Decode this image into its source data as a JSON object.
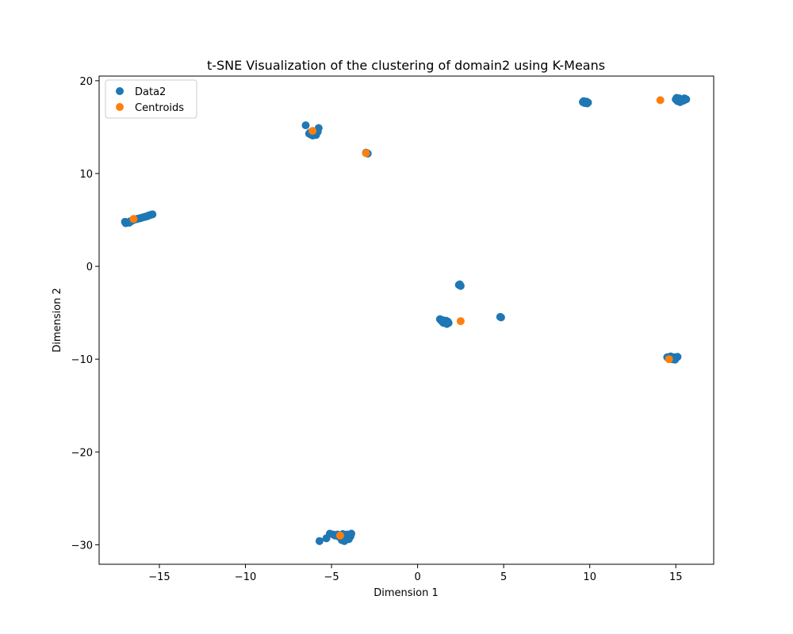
{
  "chart_data": {
    "type": "scatter",
    "title": "t-SNE Visualization of the clustering of domain2 using K-Means",
    "xlabel": "Dimension 1",
    "ylabel": "Dimension 2",
    "xlim": [
      -18.5,
      17.2
    ],
    "ylim": [
      -32.1,
      20.5
    ],
    "xticks": [
      -15,
      -10,
      -5,
      0,
      5,
      10,
      15
    ],
    "yticks": [
      20,
      10,
      0,
      -10,
      -20,
      -30
    ],
    "xtick_labels": [
      "−15",
      "−10",
      "−5",
      "0",
      "5",
      "10",
      "15"
    ],
    "ytick_labels": [
      "20",
      "10",
      "0",
      "−10",
      "−20",
      "−30"
    ],
    "grid": false,
    "legend_position": "upper-left",
    "series": [
      {
        "name": "Data2",
        "color": "#1f77b4",
        "points": [
          [
            -17.0,
            4.8
          ],
          [
            -16.9,
            4.7
          ],
          [
            -16.8,
            4.75
          ],
          [
            -16.7,
            4.85
          ],
          [
            -16.6,
            4.9
          ],
          [
            -16.5,
            5.0
          ],
          [
            -16.4,
            5.05
          ],
          [
            -16.3,
            5.1
          ],
          [
            -16.2,
            5.15
          ],
          [
            -16.1,
            5.2
          ],
          [
            -16.0,
            5.25
          ],
          [
            -15.9,
            5.3
          ],
          [
            -15.8,
            5.35
          ],
          [
            -15.7,
            5.4
          ],
          [
            -15.6,
            5.5
          ],
          [
            -15.5,
            5.55
          ],
          [
            -15.4,
            5.6
          ],
          [
            -16.95,
            4.65
          ],
          [
            -16.75,
            4.7
          ],
          [
            -6.5,
            15.2
          ],
          [
            -6.3,
            14.3
          ],
          [
            -6.2,
            14.2
          ],
          [
            -6.1,
            14.1
          ],
          [
            -6.0,
            14.2
          ],
          [
            -5.9,
            14.15
          ],
          [
            -5.8,
            14.5
          ],
          [
            -5.75,
            14.9
          ],
          [
            -6.25,
            14.4
          ],
          [
            -6.05,
            14.35
          ],
          [
            -2.95,
            12.2
          ],
          [
            -3.0,
            12.25
          ],
          [
            -2.9,
            12.15
          ],
          [
            -5.7,
            -29.6
          ],
          [
            -5.3,
            -29.3
          ],
          [
            -5.1,
            -28.8
          ],
          [
            -4.9,
            -28.9
          ],
          [
            -4.8,
            -29.0
          ],
          [
            -4.6,
            -29.1
          ],
          [
            -4.5,
            -29.2
          ],
          [
            -4.4,
            -29.5
          ],
          [
            -4.3,
            -29.3
          ],
          [
            -4.2,
            -29.0
          ],
          [
            -4.1,
            -28.9
          ],
          [
            -4.0,
            -29.4
          ],
          [
            -3.9,
            -29.1
          ],
          [
            -3.85,
            -28.8
          ],
          [
            -4.35,
            -28.85
          ],
          [
            -4.65,
            -28.9
          ],
          [
            -4.25,
            -29.6
          ],
          [
            1.3,
            -5.7
          ],
          [
            1.4,
            -5.9
          ],
          [
            1.5,
            -6.1
          ],
          [
            1.6,
            -6.0
          ],
          [
            1.7,
            -6.2
          ],
          [
            1.8,
            -6.1
          ],
          [
            1.45,
            -5.8
          ],
          [
            1.65,
            -5.85
          ],
          [
            1.75,
            -5.95
          ],
          [
            2.4,
            -2.0
          ],
          [
            2.5,
            -2.1
          ],
          [
            2.45,
            -1.95
          ],
          [
            4.85,
            -5.5
          ],
          [
            4.8,
            -5.45
          ],
          [
            9.6,
            17.7
          ],
          [
            9.7,
            17.6
          ],
          [
            9.8,
            17.75
          ],
          [
            9.9,
            17.65
          ],
          [
            9.65,
            17.8
          ],
          [
            9.85,
            17.55
          ],
          [
            15.0,
            18.0
          ],
          [
            15.1,
            17.8
          ],
          [
            15.2,
            18.1
          ],
          [
            15.3,
            17.9
          ],
          [
            15.4,
            18.0
          ],
          [
            15.5,
            18.1
          ],
          [
            15.6,
            18.0
          ],
          [
            15.25,
            17.7
          ],
          [
            15.45,
            17.85
          ],
          [
            15.05,
            18.15
          ],
          [
            14.5,
            -9.8
          ],
          [
            14.6,
            -9.9
          ],
          [
            14.7,
            -9.7
          ],
          [
            14.8,
            -10.0
          ],
          [
            14.9,
            -9.8
          ],
          [
            15.0,
            -9.9
          ],
          [
            15.1,
            -9.75
          ],
          [
            14.75,
            -9.95
          ],
          [
            14.95,
            -10.05
          ]
        ]
      },
      {
        "name": "Centroids",
        "color": "#ff7f0e",
        "points": [
          [
            -16.5,
            5.1
          ],
          [
            -6.1,
            14.6
          ],
          [
            -3.0,
            12.2
          ],
          [
            -4.5,
            -29.0
          ],
          [
            2.5,
            -5.9
          ],
          [
            14.1,
            17.9
          ],
          [
            14.6,
            -10.0
          ]
        ]
      }
    ]
  }
}
